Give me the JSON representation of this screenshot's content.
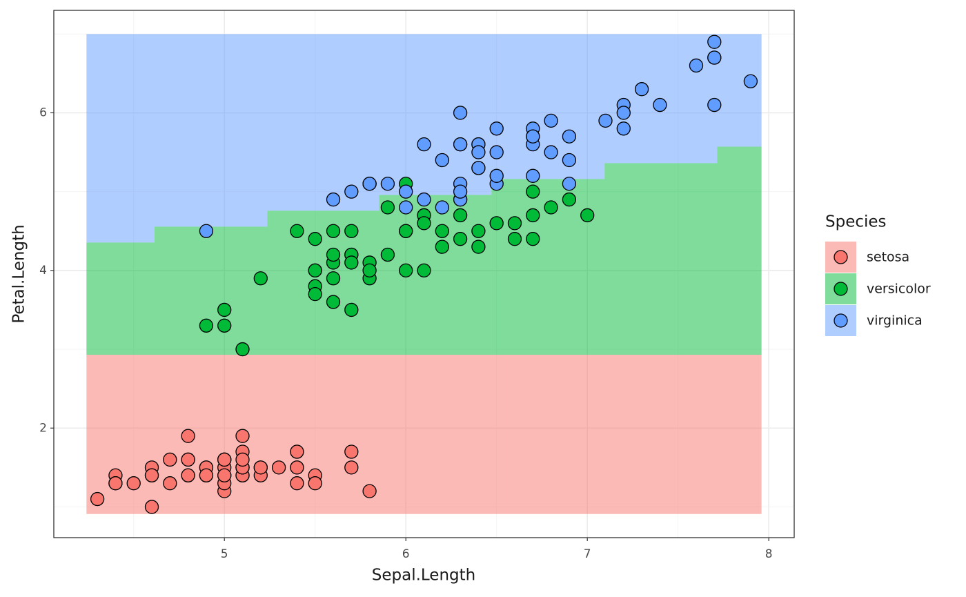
{
  "chart_data": {
    "type": "scatter",
    "xlabel": "Sepal.Length",
    "ylabel": "Petal.Length",
    "legend_title": "Species",
    "legend": "right",
    "grid": true,
    "xlim": [
      4.06,
      8.14
    ],
    "ylim": [
      0.61,
      7.3
    ],
    "xticks": [
      5,
      6,
      7,
      8
    ],
    "yticks": [
      2,
      4,
      6
    ],
    "region_x": [
      4.24,
      4.615,
      5.236,
      5.853,
      6.472,
      7.095,
      7.716,
      7.96
    ],
    "series": [
      {
        "name": "setosa",
        "color": "#F8766D",
        "region_lower": [
          0.91,
          0.91,
          0.91,
          0.91,
          0.91,
          0.91,
          0.91
        ],
        "region_upper": [
          2.93,
          2.93,
          2.93,
          2.93,
          2.93,
          2.93,
          2.93
        ],
        "x": [
          5.1,
          4.9,
          4.7,
          4.6,
          5.0,
          5.4,
          4.6,
          5.0,
          4.4,
          4.9,
          5.4,
          4.8,
          4.8,
          4.3,
          5.8,
          5.7,
          5.4,
          5.1,
          5.7,
          5.1,
          5.4,
          5.1,
          4.6,
          5.1,
          4.8,
          5.0,
          5.0,
          5.2,
          5.2,
          4.7,
          4.8,
          5.4,
          5.2,
          5.5,
          4.9,
          5.0,
          5.5,
          4.9,
          4.4,
          5.1,
          5.0,
          4.5,
          4.4,
          5.0,
          5.1,
          4.8,
          5.1,
          4.6,
          5.3,
          5.0
        ],
        "values": [
          1.4,
          1.4,
          1.3,
          1.5,
          1.4,
          1.7,
          1.4,
          1.5,
          1.4,
          1.5,
          1.5,
          1.6,
          1.4,
          1.1,
          1.2,
          1.5,
          1.3,
          1.4,
          1.7,
          1.5,
          1.7,
          1.5,
          1.0,
          1.7,
          1.9,
          1.6,
          1.6,
          1.5,
          1.4,
          1.6,
          1.6,
          1.5,
          1.5,
          1.4,
          1.5,
          1.2,
          1.3,
          1.4,
          1.3,
          1.5,
          1.3,
          1.3,
          1.3,
          1.6,
          1.9,
          1.4,
          1.6,
          1.4,
          1.5,
          1.4
        ]
      },
      {
        "name": "versicolor",
        "color": "#00BA38",
        "region_lower": [
          2.93,
          2.93,
          2.93,
          2.93,
          2.93,
          2.93,
          2.93
        ],
        "region_upper": [
          4.355,
          4.556,
          4.758,
          4.959,
          5.16,
          5.361,
          5.571
        ],
        "x": [
          7.0,
          6.4,
          6.9,
          5.5,
          6.5,
          5.7,
          6.3,
          4.9,
          6.6,
          5.2,
          5.0,
          5.9,
          6.0,
          6.1,
          5.6,
          6.7,
          5.6,
          5.8,
          6.2,
          5.6,
          5.9,
          6.1,
          6.3,
          6.1,
          6.4,
          6.6,
          6.8,
          6.7,
          6.0,
          5.7,
          5.5,
          5.5,
          5.8,
          6.0,
          5.4,
          6.0,
          6.7,
          6.3,
          5.6,
          5.5,
          5.5,
          6.1,
          5.8,
          5.0,
          5.6,
          5.7,
          5.7,
          6.2,
          5.1,
          5.7
        ],
        "values": [
          4.7,
          4.5,
          4.9,
          4.0,
          4.6,
          4.5,
          4.7,
          3.3,
          4.6,
          3.9,
          3.5,
          4.2,
          4.0,
          4.7,
          3.6,
          4.4,
          4.5,
          4.1,
          4.5,
          3.9,
          4.8,
          4.0,
          4.9,
          4.7,
          4.3,
          4.4,
          4.8,
          5.0,
          4.5,
          3.5,
          3.8,
          3.7,
          3.9,
          5.1,
          4.5,
          4.5,
          4.7,
          4.4,
          4.1,
          4.0,
          4.4,
          4.6,
          4.0,
          3.3,
          4.2,
          4.2,
          4.2,
          4.3,
          3.0,
          4.1
        ]
      },
      {
        "name": "virginica",
        "color": "#619CFF",
        "region_lower": [
          4.355,
          4.556,
          4.758,
          4.959,
          5.16,
          5.361,
          5.571
        ],
        "region_upper": [
          7.0,
          7.0,
          7.0,
          7.0,
          7.0,
          7.0,
          7.0
        ],
        "x": [
          6.3,
          5.8,
          7.1,
          6.3,
          6.5,
          7.6,
          4.9,
          7.3,
          6.7,
          7.2,
          6.5,
          6.4,
          6.8,
          5.7,
          5.8,
          6.4,
          6.5,
          7.7,
          7.7,
          6.0,
          6.9,
          5.6,
          7.7,
          6.3,
          6.7,
          7.2,
          6.2,
          6.1,
          6.4,
          7.2,
          7.4,
          7.9,
          6.4,
          6.3,
          6.1,
          7.7,
          6.3,
          6.4,
          6.0,
          6.9,
          6.7,
          6.9,
          5.8,
          6.8,
          6.7,
          6.7,
          6.3,
          6.5,
          6.2,
          5.9
        ],
        "values": [
          6.0,
          5.1,
          5.9,
          5.6,
          5.8,
          6.6,
          4.5,
          6.3,
          5.8,
          6.1,
          5.1,
          5.3,
          5.5,
          5.0,
          5.1,
          5.3,
          5.5,
          6.7,
          6.9,
          5.0,
          5.7,
          4.9,
          6.7,
          4.9,
          5.7,
          6.0,
          4.8,
          4.9,
          5.6,
          5.8,
          6.1,
          6.4,
          5.6,
          5.1,
          5.6,
          6.1,
          5.6,
          5.5,
          4.8,
          5.4,
          5.6,
          5.1,
          5.1,
          5.9,
          5.7,
          5.2,
          5.0,
          5.2,
          5.4,
          5.1
        ]
      }
    ]
  }
}
